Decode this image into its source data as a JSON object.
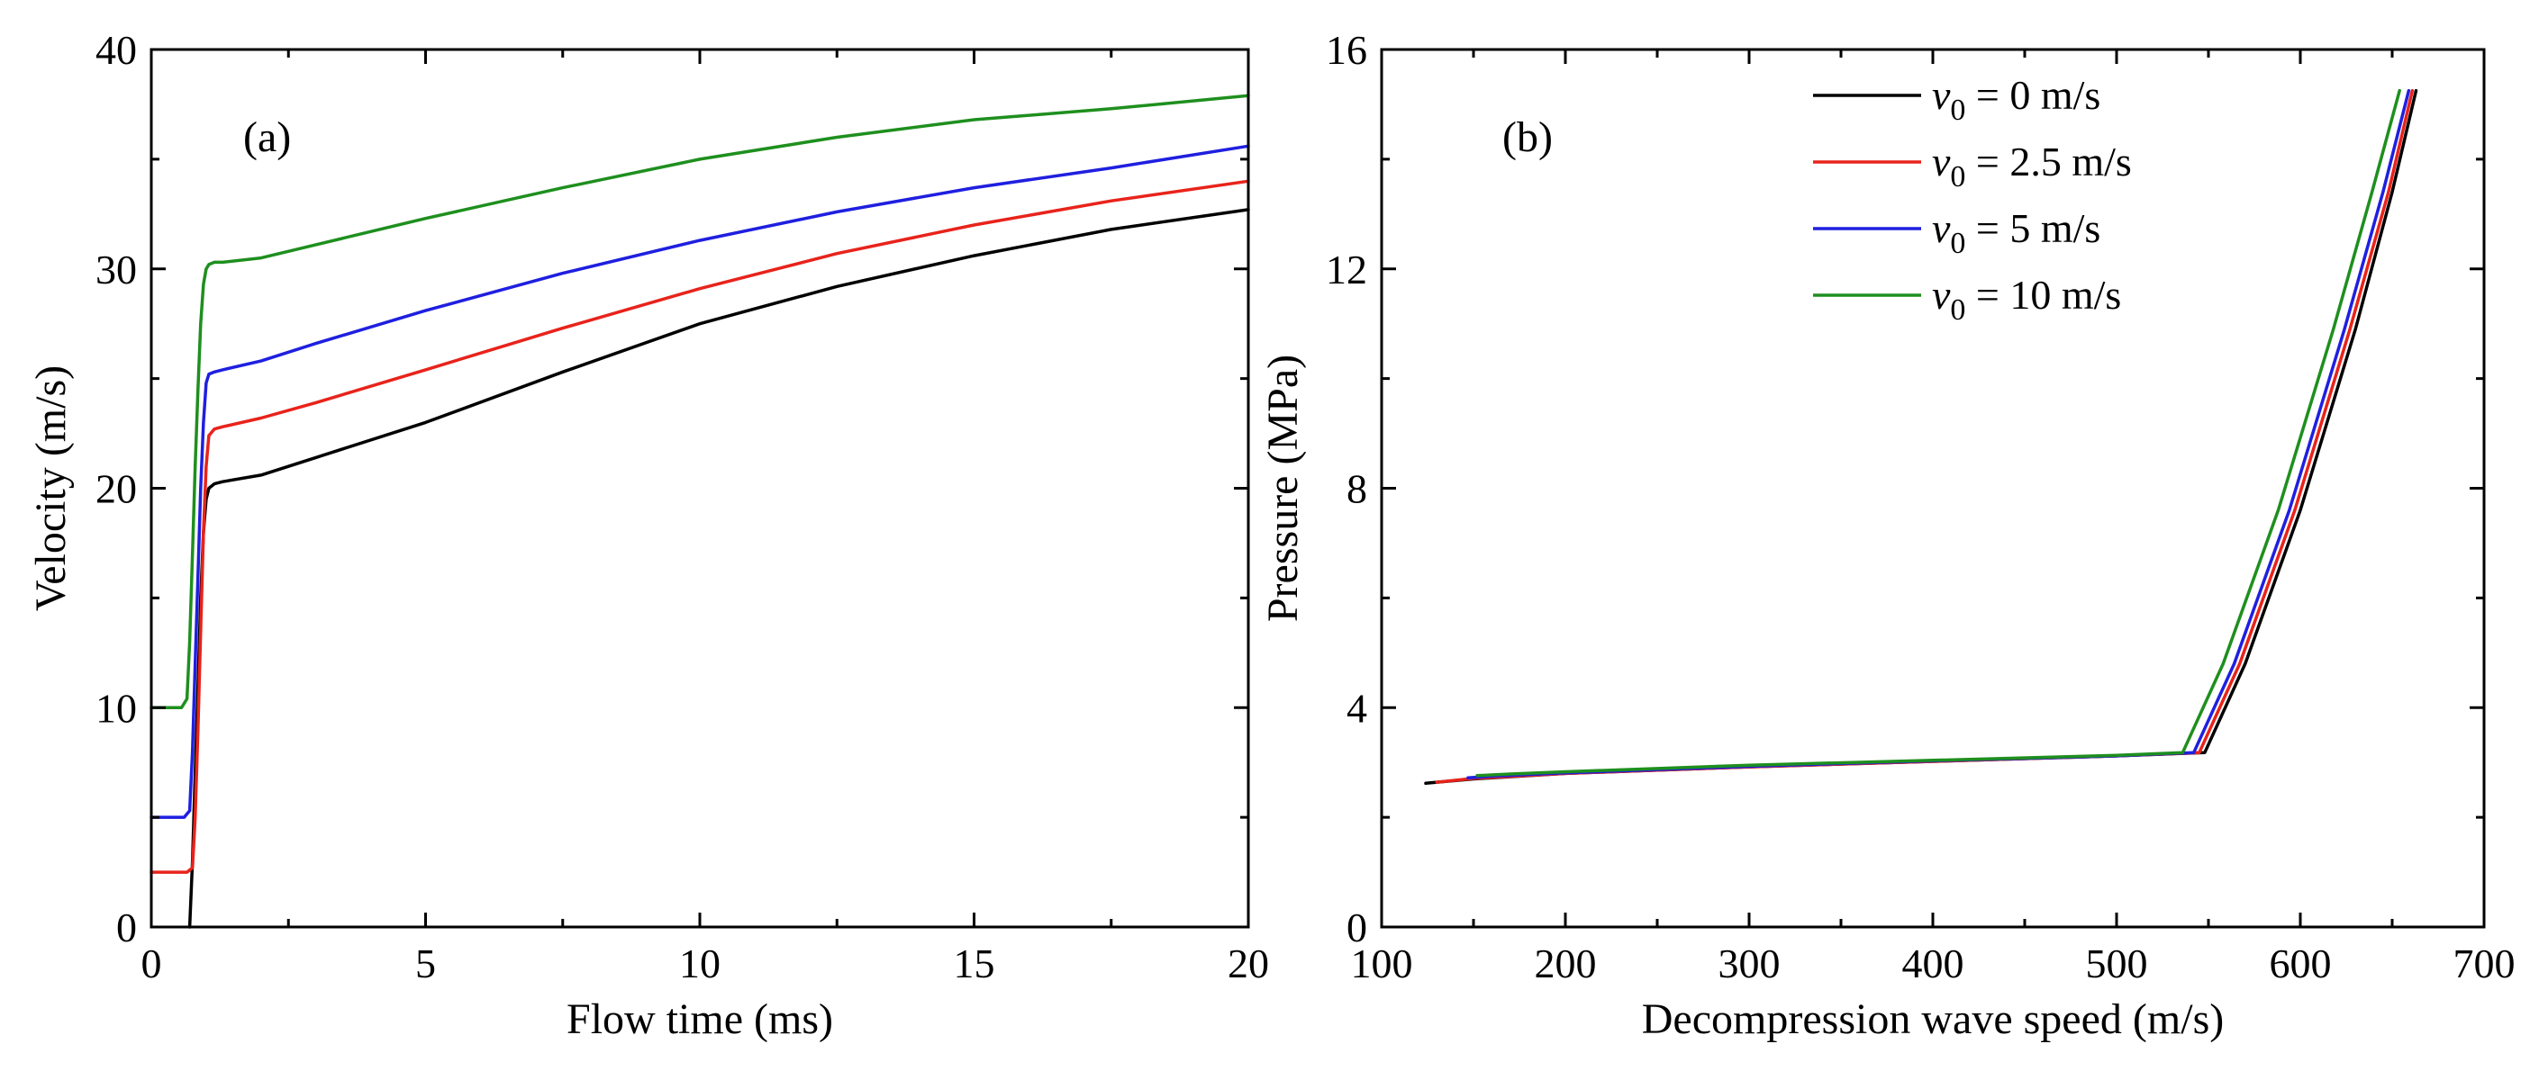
{
  "chart_data": [
    {
      "panel": "(a)",
      "type": "line",
      "title": "",
      "xlabel": "Flow time (ms)",
      "ylabel": "Velocity (m/s)",
      "xlim": [
        0,
        20
      ],
      "ylim": [
        0,
        40
      ],
      "xticks": [
        0,
        5,
        10,
        15,
        20
      ],
      "yticks": [
        0,
        10,
        20,
        30,
        40
      ],
      "xtick_labels": [
        "0",
        "5",
        "10",
        "15",
        "20"
      ],
      "ytick_labels": [
        "0",
        "10",
        "20",
        "30",
        "40"
      ],
      "series": [
        {
          "name": "v0 = 0 m/s",
          "color": "#000000",
          "x": [
            0.7,
            0.75,
            0.8,
            0.85,
            0.9,
            0.95,
            1.0,
            1.05,
            1.15,
            1.3,
            2,
            3,
            5,
            7.5,
            10,
            12.5,
            15,
            17.5,
            20
          ],
          "y": [
            0,
            3,
            7,
            11,
            15,
            18,
            19.5,
            20.0,
            20.2,
            20.3,
            20.6,
            21.4,
            23.0,
            25.3,
            27.5,
            29.2,
            30.6,
            31.8,
            32.7
          ]
        },
        {
          "name": "v0 = 2.5 m/s",
          "color": "#e8231b",
          "x": [
            0,
            0.65,
            0.75,
            0.8,
            0.85,
            0.9,
            0.95,
            1.0,
            1.05,
            1.15,
            1.3,
            2,
            3,
            5,
            7.5,
            10,
            12.5,
            15,
            17.5,
            20
          ],
          "y": [
            2.5,
            2.5,
            2.7,
            5,
            9,
            13.5,
            18,
            21,
            22.4,
            22.7,
            22.8,
            23.2,
            23.9,
            25.4,
            27.3,
            29.1,
            30.7,
            32.0,
            33.1,
            34.0
          ]
        },
        {
          "name": "v0 = 5 m/s",
          "color": "#1f1fe0",
          "x": [
            0,
            0.6,
            0.7,
            0.75,
            0.8,
            0.85,
            0.9,
            0.95,
            1.0,
            1.05,
            1.15,
            1.3,
            2,
            3,
            5,
            7.5,
            10,
            12.5,
            15,
            17.5,
            20
          ],
          "y": [
            5,
            5,
            5.3,
            8,
            12,
            16,
            20,
            23,
            24.8,
            25.2,
            25.3,
            25.4,
            25.8,
            26.6,
            28.1,
            29.8,
            31.3,
            32.6,
            33.7,
            34.6,
            35.6
          ]
        },
        {
          "name": "v0 = 10 m/s",
          "color": "#1e8f1e",
          "x": [
            0,
            0.55,
            0.65,
            0.7,
            0.75,
            0.8,
            0.85,
            0.9,
            0.95,
            1.0,
            1.05,
            1.15,
            1.3,
            2,
            3,
            5,
            7.5,
            10,
            12.5,
            15,
            17.5,
            20
          ],
          "y": [
            10,
            10,
            10.4,
            13,
            17,
            21,
            24.5,
            27.5,
            29.3,
            30.0,
            30.2,
            30.3,
            30.3,
            30.5,
            31.1,
            32.3,
            33.7,
            35.0,
            36.0,
            36.8,
            37.3,
            37.9
          ]
        }
      ]
    },
    {
      "panel": "(b)",
      "type": "line",
      "title": "",
      "xlabel": "Decompression wave speed (m/s)",
      "ylabel": "Pressure (MPa)",
      "xlim": [
        100,
        700
      ],
      "ylim": [
        0,
        16
      ],
      "xticks": [
        100,
        200,
        300,
        400,
        500,
        600,
        700
      ],
      "yticks": [
        0,
        4,
        8,
        12,
        16
      ],
      "xtick_labels": [
        "100",
        "200",
        "300",
        "400",
        "500",
        "600",
        "700"
      ],
      "ytick_labels": [
        "0",
        "4",
        "8",
        "12",
        "16"
      ],
      "legend_position": "top-right",
      "series": [
        {
          "name": "v0 = 0 m/s",
          "color": "#000000",
          "x": [
            124,
            150,
            200,
            300,
            400,
            500,
            548,
            570,
            600,
            630,
            650,
            663
          ],
          "y": [
            2.62,
            2.7,
            2.8,
            2.92,
            3.02,
            3.12,
            3.18,
            4.8,
            7.6,
            10.9,
            13.4,
            15.25
          ]
        },
        {
          "name": "v0 = 2.5 m/s",
          "color": "#e8231b",
          "x": [
            130,
            150,
            200,
            300,
            400,
            500,
            545,
            567,
            597,
            627,
            648,
            661
          ],
          "y": [
            2.64,
            2.71,
            2.8,
            2.92,
            3.02,
            3.12,
            3.18,
            4.8,
            7.6,
            10.9,
            13.4,
            15.25
          ]
        },
        {
          "name": "v0 = 5 m/s",
          "color": "#1f1fe0",
          "x": [
            147,
            160,
            200,
            300,
            400,
            500,
            542,
            564,
            594,
            624,
            645,
            659
          ],
          "y": [
            2.72,
            2.75,
            2.81,
            2.93,
            3.03,
            3.12,
            3.18,
            4.8,
            7.6,
            10.9,
            13.4,
            15.25
          ]
        },
        {
          "name": "v0 = 10 m/s",
          "color": "#1e8f1e",
          "x": [
            152,
            170,
            200,
            300,
            400,
            500,
            536,
            558,
            588,
            618,
            639,
            654
          ],
          "y": [
            2.76,
            2.79,
            2.83,
            2.95,
            3.04,
            3.13,
            3.18,
            4.8,
            7.6,
            10.9,
            13.4,
            15.25
          ]
        }
      ],
      "legend": [
        {
          "var": "v",
          "sub": "0",
          "rest": " = 0 m/s",
          "color": "#000000"
        },
        {
          "var": "v",
          "sub": "0",
          "rest": " = 2.5 m/s",
          "color": "#e8231b"
        },
        {
          "var": "v",
          "sub": "0",
          "rest": " = 5 m/s",
          "color": "#1f1fe0"
        },
        {
          "var": "v",
          "sub": "0",
          "rest": " = 10 m/s",
          "color": "#1e8f1e"
        }
      ]
    }
  ]
}
